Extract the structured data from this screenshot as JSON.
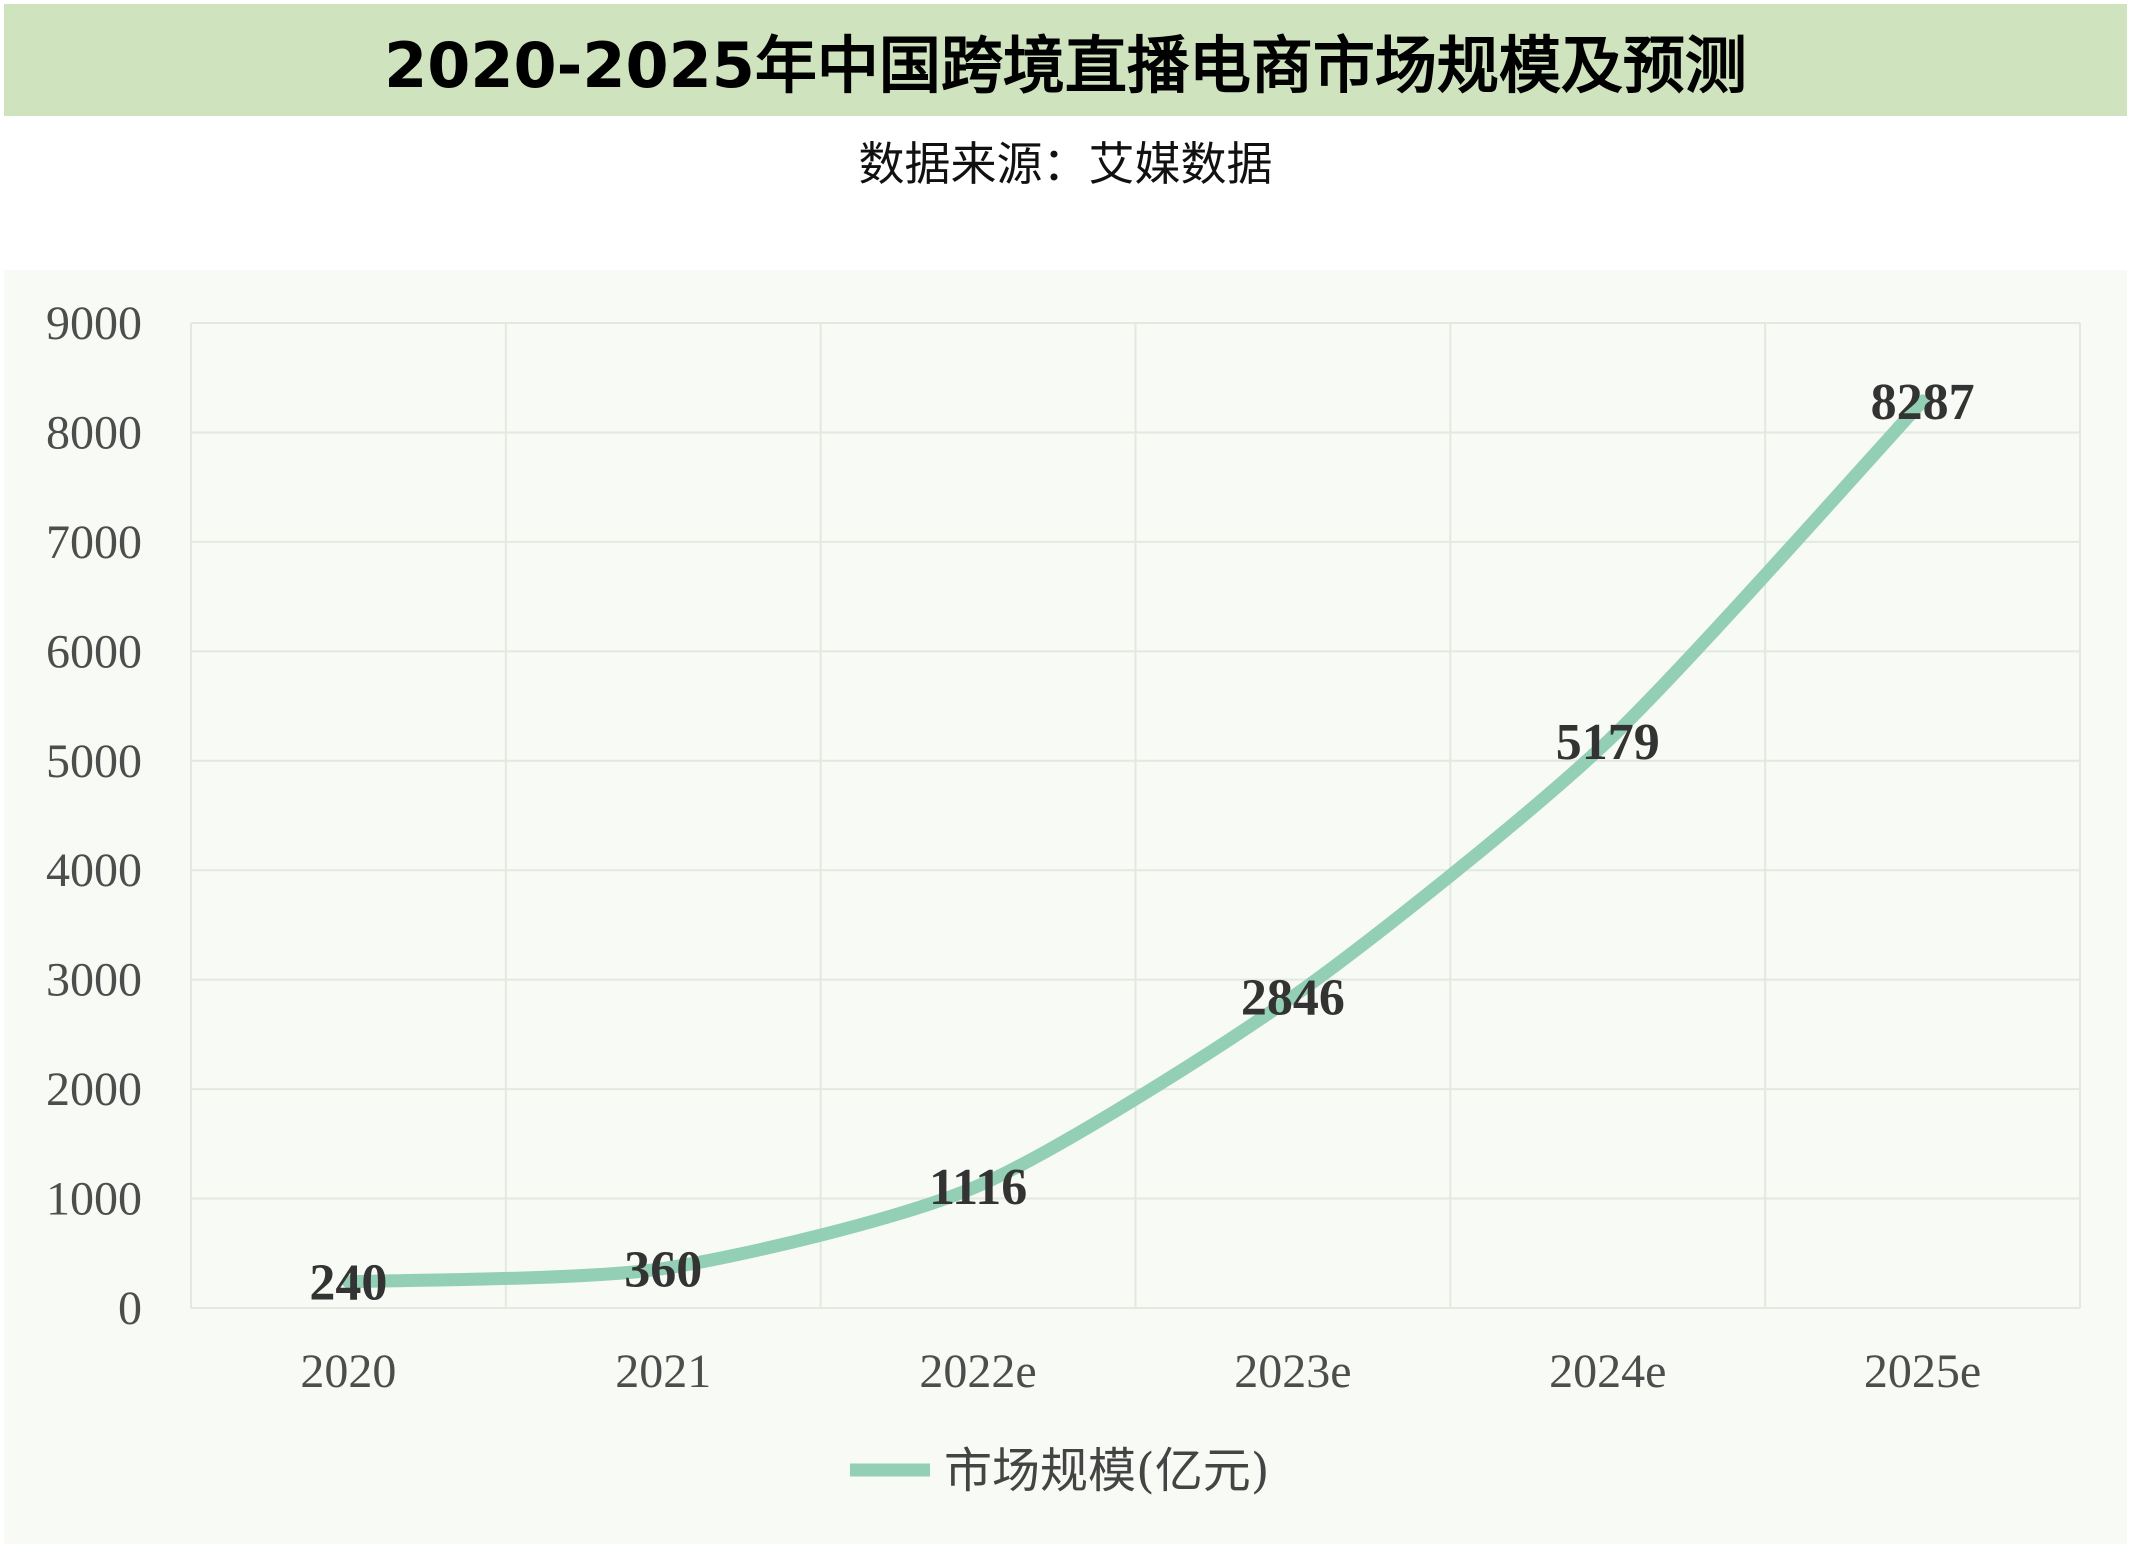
{
  "title": "2020-2025年中国跨境直播电商市场规模及预测",
  "subtitle": "数据来源：艾媒数据",
  "colors": {
    "title_bg": "#cfe3bf",
    "plot_bg": "#f8faf5",
    "line": "#93cfb4",
    "grid": "#e3e8e0"
  },
  "chart_data": {
    "type": "line",
    "categories": [
      "2020",
      "2021",
      "2022e",
      "2023e",
      "2024e",
      "2025e"
    ],
    "series": [
      {
        "name": "市场规模(亿元)",
        "values": [
          240,
          360,
          1116,
          2846,
          5179,
          8287
        ]
      }
    ],
    "data_labels": [
      "240",
      "360",
      "1116",
      "2846",
      "5179",
      "8287"
    ],
    "ylim": [
      0,
      9000
    ],
    "yticks": [
      "0",
      "1000",
      "2000",
      "3000",
      "4000",
      "5000",
      "6000",
      "7000",
      "8000",
      "9000"
    ],
    "xlabel": "",
    "ylabel": "",
    "grid": true,
    "legend_position": "bottom"
  }
}
